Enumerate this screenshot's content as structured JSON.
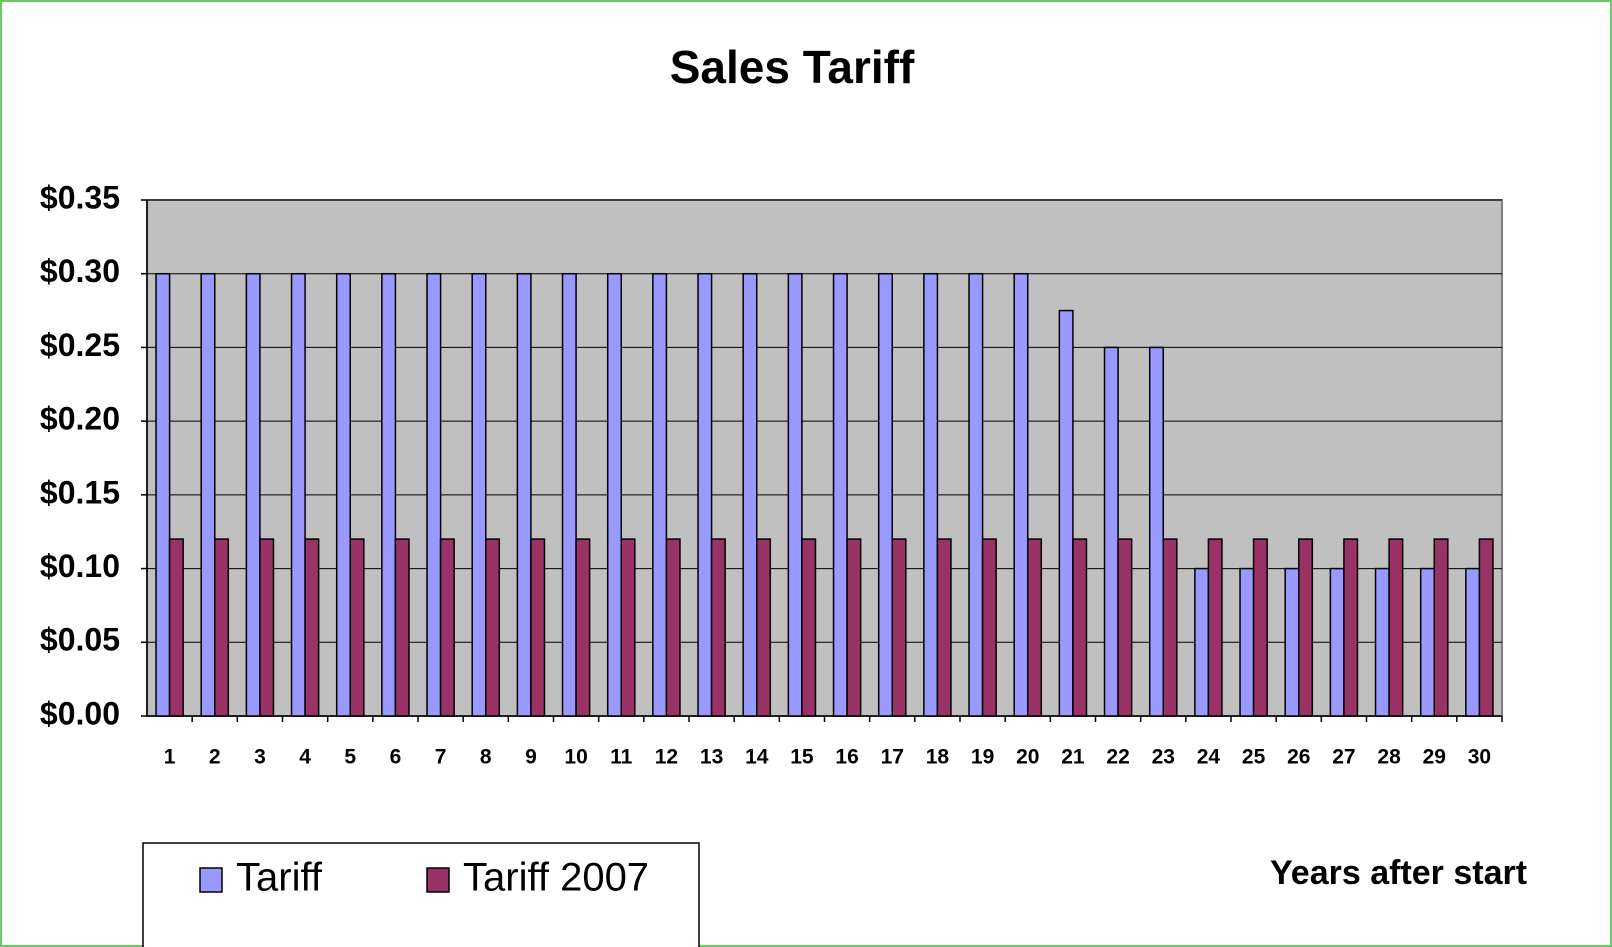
{
  "chart_data": {
    "type": "bar",
    "title": "Sales Tariff",
    "x_label": "Years after start",
    "categories": [
      "1",
      "2",
      "3",
      "4",
      "5",
      "6",
      "7",
      "8",
      "9",
      "10",
      "11",
      "12",
      "13",
      "14",
      "15",
      "16",
      "17",
      "18",
      "19",
      "20",
      "21",
      "22",
      "23",
      "24",
      "25",
      "26",
      "27",
      "28",
      "29",
      "30"
    ],
    "series": [
      {
        "name": "Tariff",
        "color": "#9999ff",
        "values": [
          0.3,
          0.3,
          0.3,
          0.3,
          0.3,
          0.3,
          0.3,
          0.3,
          0.3,
          0.3,
          0.3,
          0.3,
          0.3,
          0.3,
          0.3,
          0.3,
          0.3,
          0.3,
          0.3,
          0.3,
          0.275,
          0.25,
          0.25,
          0.1,
          0.1,
          0.1,
          0.1,
          0.1,
          0.1,
          0.1
        ]
      },
      {
        "name": "Tariff 2007",
        "color": "#993366",
        "values": [
          0.12,
          0.12,
          0.12,
          0.12,
          0.12,
          0.12,
          0.12,
          0.12,
          0.12,
          0.12,
          0.12,
          0.12,
          0.12,
          0.12,
          0.12,
          0.12,
          0.12,
          0.12,
          0.12,
          0.12,
          0.12,
          0.12,
          0.12,
          0.12,
          0.12,
          0.12,
          0.12,
          0.12,
          0.12,
          0.12
        ]
      }
    ],
    "ylim": [
      0,
      0.35
    ],
    "yticks": [
      {
        "value": 0,
        "label": "$0.00"
      },
      {
        "value": 0.05,
        "label": "$0.05"
      },
      {
        "value": 0.1,
        "label": "$0.10"
      },
      {
        "value": 0.15,
        "label": "$0.15"
      },
      {
        "value": 0.2,
        "label": "$0.20"
      },
      {
        "value": 0.25,
        "label": "$0.25"
      },
      {
        "value": 0.3,
        "label": "$0.30"
      },
      {
        "value": 0.35,
        "label": "$0.35"
      }
    ],
    "grid": true,
    "legend": "bottom-left"
  }
}
